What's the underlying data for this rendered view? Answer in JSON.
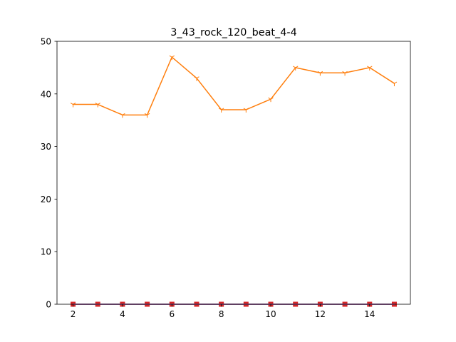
{
  "chart_data": {
    "type": "line",
    "title": "3_43_rock_120_beat_4-4",
    "xlabel": "",
    "ylabel": "",
    "xlim": [
      1.35,
      15.65
    ],
    "ylim": [
      0,
      50
    ],
    "xticks": [
      2,
      4,
      6,
      8,
      10,
      12,
      14
    ],
    "yticks": [
      0,
      10,
      20,
      30,
      40,
      50
    ],
    "grid": false,
    "x": [
      2,
      3,
      4,
      5,
      6,
      7,
      8,
      9,
      10,
      11,
      12,
      13,
      14,
      15
    ],
    "series": [
      {
        "color": "#1f77b4",
        "marker": "none",
        "values": [
          0,
          0,
          0,
          0,
          0,
          0,
          0,
          0,
          0,
          0,
          0,
          0,
          0,
          0
        ]
      },
      {
        "color": "#ff7f0e",
        "marker": "tri_down",
        "values": [
          38,
          38,
          36,
          36,
          47,
          43,
          37,
          37,
          39,
          45,
          44,
          44,
          45,
          42
        ]
      },
      {
        "color": "#d62728",
        "marker": "square",
        "values": [
          0,
          0,
          0,
          0,
          0,
          0,
          0,
          0,
          0,
          0,
          0,
          0,
          0,
          0
        ]
      },
      {
        "color": "#9467bd",
        "marker": "none",
        "values": [
          0,
          0,
          0,
          0,
          0,
          0,
          0,
          0,
          0,
          0,
          0,
          0,
          0,
          0
        ]
      }
    ]
  }
}
